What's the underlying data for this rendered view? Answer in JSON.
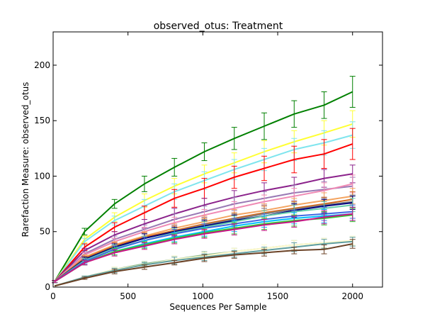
{
  "chart_data": {
    "type": "line",
    "title": "observed_otus: Treatment",
    "xlabel": "Sequences Per Sample",
    "ylabel": "Rarefaction Measure: observed_otus",
    "xlim": [
      0,
      2200
    ],
    "ylim": [
      0,
      230
    ],
    "xticks": [
      0,
      500,
      1000,
      1500,
      2000
    ],
    "yticks": [
      0,
      50,
      100,
      150,
      200
    ],
    "grid": false,
    "legend": "none",
    "x": [
      10,
      210,
      410,
      610,
      810,
      1010,
      1210,
      1410,
      1610,
      1810,
      2000
    ],
    "series": [
      {
        "color": "#008000",
        "values": [
          5,
          50,
          75,
          93,
          108,
          122,
          134,
          145,
          156,
          164,
          176
        ],
        "err": [
          1,
          3,
          4,
          7,
          8,
          8,
          10,
          12,
          12,
          12,
          14
        ]
      },
      {
        "color": "#ffff33",
        "values": [
          5,
          43,
          63,
          78,
          91,
          102,
          112,
          122,
          131,
          139,
          147
        ],
        "err": [
          1,
          3,
          4,
          6,
          7,
          8,
          9,
          10,
          10,
          11,
          12
        ]
      },
      {
        "color": "#7fe5ee",
        "values": [
          5,
          41,
          60,
          73,
          86,
          96,
          106,
          115,
          124,
          130,
          137
        ],
        "err": [
          1,
          3,
          4,
          6,
          7,
          8,
          9,
          10,
          10,
          11,
          12
        ]
      },
      {
        "color": "#ff0000",
        "values": [
          5,
          36,
          54,
          67,
          80,
          89,
          99,
          107,
          115,
          120,
          129
        ],
        "err": [
          1,
          3,
          4,
          6,
          8,
          9,
          10,
          11,
          12,
          13,
          14
        ]
      },
      {
        "color": "#8b228b",
        "values": [
          5,
          33,
          47,
          57,
          66,
          74,
          81,
          87,
          92,
          98,
          102
        ],
        "err": [
          1,
          2,
          3,
          4,
          5,
          6,
          6,
          7,
          7,
          8,
          8
        ]
      },
      {
        "color": "#9a7ab5",
        "values": [
          5,
          30,
          43,
          52,
          61,
          68,
          75,
          80,
          85,
          88,
          91
        ],
        "err": [
          1,
          2,
          3,
          4,
          5,
          5,
          6,
          6,
          7,
          7,
          8
        ]
      },
      {
        "color": "#f08ab4",
        "values": [
          5,
          29,
          41,
          50,
          58,
          65,
          71,
          77,
          82,
          87,
          93
        ],
        "err": [
          1,
          2,
          3,
          4,
          5,
          5,
          6,
          6,
          7,
          7,
          8
        ]
      },
      {
        "color": "#f4a460",
        "values": [
          5,
          27,
          38,
          46,
          53,
          59,
          65,
          69,
          74,
          78,
          82
        ],
        "err": [
          1,
          2,
          3,
          4,
          4,
          5,
          5,
          6,
          6,
          7,
          7
        ]
      },
      {
        "color": "#d2691e",
        "values": [
          5,
          26,
          37,
          45,
          51,
          57,
          62,
          67,
          71,
          75,
          79
        ],
        "err": [
          1,
          2,
          3,
          4,
          4,
          5,
          5,
          6,
          6,
          6,
          7
        ]
      },
      {
        "color": "#808080",
        "values": [
          5,
          25,
          36,
          44,
          50,
          56,
          61,
          66,
          70,
          74,
          77
        ],
        "err": [
          1,
          2,
          3,
          4,
          4,
          5,
          5,
          5,
          6,
          6,
          6
        ]
      },
      {
        "color": "#000080",
        "values": [
          5,
          25,
          36,
          44,
          50,
          55,
          60,
          64,
          69,
          73,
          76
        ],
        "err": [
          1,
          2,
          3,
          4,
          4,
          5,
          5,
          5,
          6,
          6,
          6
        ]
      },
      {
        "color": "#66cdaa",
        "values": [
          5,
          24,
          35,
          42,
          49,
          54,
          59,
          64,
          68,
          71,
          74
        ],
        "err": [
          1,
          2,
          3,
          4,
          4,
          5,
          5,
          5,
          6,
          6,
          6
        ]
      },
      {
        "color": "#4169e1",
        "values": [
          5,
          23,
          34,
          42,
          48,
          53,
          57,
          61,
          64,
          66,
          68
        ],
        "err": [
          1,
          2,
          3,
          3,
          4,
          4,
          5,
          5,
          5,
          6,
          6
        ]
      },
      {
        "color": "#00bfff",
        "values": [
          5,
          22,
          32,
          39,
          45,
          50,
          55,
          59,
          62,
          64,
          66
        ],
        "err": [
          1,
          2,
          3,
          3,
          4,
          4,
          5,
          5,
          5,
          6,
          6
        ]
      },
      {
        "color": "#32cd32",
        "values": [
          5,
          22,
          32,
          38,
          44,
          49,
          53,
          57,
          60,
          62,
          65
        ],
        "err": [
          1,
          2,
          3,
          3,
          4,
          4,
          5,
          5,
          5,
          6,
          6
        ]
      },
      {
        "color": "#c71585",
        "values": [
          5,
          22,
          31,
          37,
          43,
          48,
          52,
          56,
          59,
          63,
          66
        ],
        "err": [
          1,
          2,
          3,
          3,
          4,
          4,
          5,
          5,
          5,
          6,
          6
        ]
      },
      {
        "color": "#8fbc8f",
        "values": [
          1,
          9,
          16,
          21,
          25,
          29,
          32,
          35,
          38,
          40,
          41
        ],
        "err": [
          0,
          1,
          2,
          2,
          3,
          3,
          3,
          3,
          4,
          4,
          4
        ]
      },
      {
        "color": "#fffacd",
        "values": [
          1,
          9,
          16,
          20,
          25,
          28,
          32,
          35,
          38,
          40,
          42
        ],
        "err": [
          0,
          1,
          2,
          2,
          3,
          3,
          3,
          3,
          4,
          4,
          4
        ]
      },
      {
        "color": "#5f9ea0",
        "values": [
          1,
          9,
          15,
          20,
          24,
          27,
          30,
          33,
          36,
          39,
          41
        ],
        "err": [
          0,
          1,
          2,
          2,
          3,
          3,
          3,
          3,
          4,
          4,
          4
        ]
      },
      {
        "color": "#6b4226",
        "values": [
          1,
          8,
          14,
          18,
          22,
          26,
          29,
          31,
          33,
          34,
          39
        ],
        "err": [
          0,
          1,
          2,
          2,
          2,
          3,
          3,
          3,
          3,
          4,
          4
        ]
      }
    ]
  }
}
